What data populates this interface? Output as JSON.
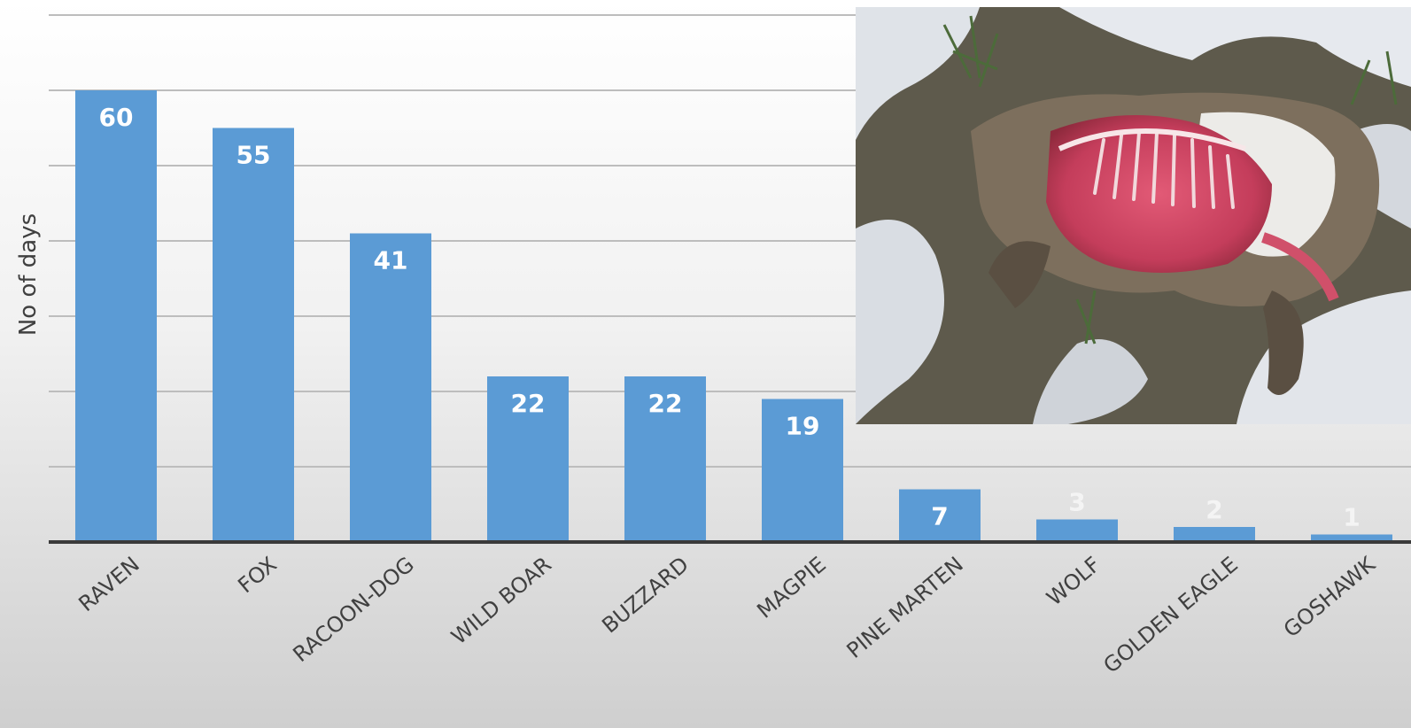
{
  "chart_data": {
    "type": "bar",
    "title": "",
    "xlabel": "",
    "ylabel": "No of days",
    "categories": [
      "RAVEN",
      "FOX",
      "RACOON-DOG",
      "WILD BOAR",
      "BUZZARD",
      "MAGPIE",
      "PINE MARTEN",
      "WOLF",
      "GOLDEN EAGLE",
      "GOSHAWK"
    ],
    "values": [
      60,
      55,
      41,
      22,
      22,
      19,
      7,
      3,
      2,
      1
    ],
    "data_labels": [
      "60",
      "55",
      "41",
      "22",
      "22",
      "19",
      "7",
      "3",
      "2",
      "1"
    ],
    "ylim": [
      0,
      70
    ],
    "gridline_step": 10,
    "grid": true,
    "legend": "none",
    "bar_color": "#5b9bd5"
  },
  "inset": {
    "kind": "photo",
    "subject": "carcass-on-snow-photo"
  }
}
